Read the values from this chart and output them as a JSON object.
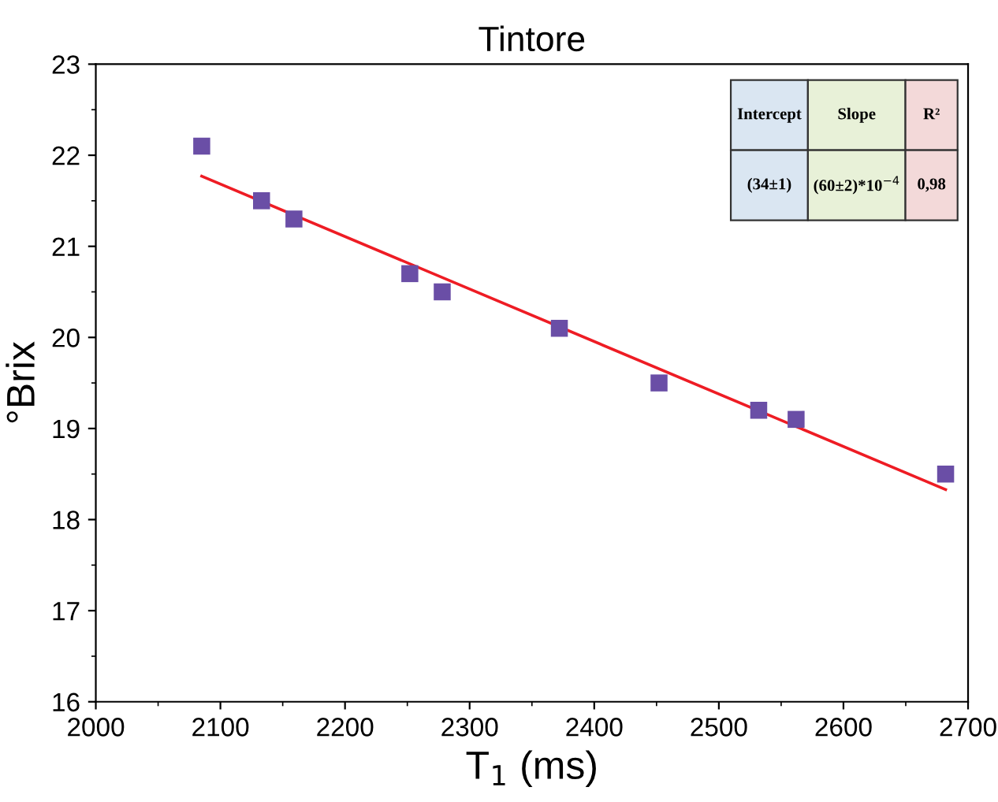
{
  "chart_data": {
    "type": "scatter",
    "title": "Tintore",
    "xlabel": "T$_{1}$ (ms)",
    "ylabel": "°Brix",
    "xlim": [
      2000,
      2700
    ],
    "xticks": [
      2000,
      2100,
      2200,
      2300,
      2400,
      2500,
      2600,
      2700
    ],
    "ylim": [
      16,
      23
    ],
    "yticks": [
      16,
      17,
      18,
      19,
      20,
      21,
      22,
      23
    ],
    "grid": false,
    "marker": "square",
    "series": [
      {
        "color": "#6a4ea6",
        "x": [
          2085,
          2133,
          2159,
          2252,
          2278,
          2372,
          2452,
          2532,
          2562,
          2682
        ],
        "values": [
          22.1,
          21.5,
          21.3,
          20.7,
          20.5,
          20.1,
          19.5,
          19.2,
          19.1,
          18.5
        ]
      },
      {
        "type": "line",
        "color": "#ee1c24",
        "marker": "none",
        "x": [
          2085,
          2682
        ],
        "values": [
          21.77,
          18.33
        ]
      }
    ],
    "annotations": [
      "Intercept",
      "Slope",
      "R²",
      "(34±1)",
      "(60±2)*10$^{−4}$",
      "0,98"
    ]
  }
}
